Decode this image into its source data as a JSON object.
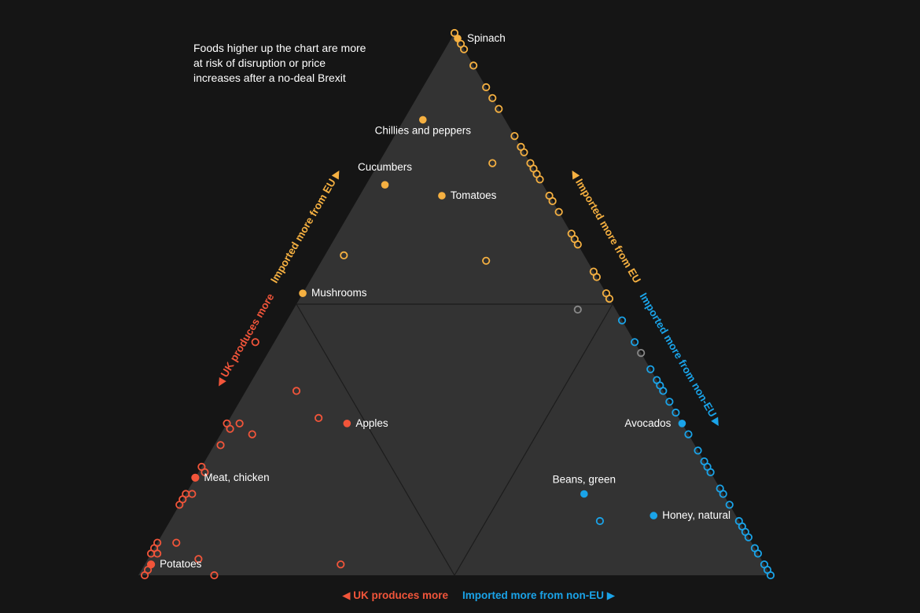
{
  "intro_text": "Foods higher up the chart are more at risk of disruption or price increases after a no-deal Brexit",
  "colors": {
    "background": "#151515",
    "triangle_fill": "#333333",
    "inner_lines": "#1c1c1c",
    "uk": "#f2553a",
    "eu": "#f5b041",
    "noneu": "#1aa3e8",
    "neutral": "#888888",
    "label": "#ffffff"
  },
  "chart_data": {
    "type": "scatter",
    "subtype": "ternary",
    "title": "",
    "components": [
      "UK produced",
      "Imported from EU",
      "Imported from non-EU"
    ],
    "axis_labels": {
      "left_upper": "Imported more from EU",
      "left_lower": "UK produces more",
      "right_upper": "Imported more from EU",
      "right_lower": "Imported more from non-EU",
      "bottom_left": "UK produces more",
      "bottom_right": "Imported more from non-EU"
    },
    "grid": "inner triangle at midpoints",
    "labeled_points": [
      {
        "name": "Spinach",
        "uk": 0.0,
        "eu": 0.99,
        "noneu": 0.01,
        "group": "eu"
      },
      {
        "name": "Chillies and peppers",
        "uk": 0.13,
        "eu": 0.84,
        "noneu": 0.03,
        "group": "eu"
      },
      {
        "name": "Cucumbers",
        "uk": 0.25,
        "eu": 0.72,
        "noneu": 0.03,
        "group": "eu"
      },
      {
        "name": "Tomatoes",
        "uk": 0.17,
        "eu": 0.7,
        "noneu": 0.13,
        "group": "eu"
      },
      {
        "name": "Mushrooms",
        "uk": 0.48,
        "eu": 0.52,
        "noneu": 0.0,
        "group": "eu"
      },
      {
        "name": "Apples",
        "uk": 0.53,
        "eu": 0.28,
        "noneu": 0.19,
        "group": "uk"
      },
      {
        "name": "Meat, chicken",
        "uk": 0.82,
        "eu": 0.18,
        "noneu": 0.0,
        "group": "uk"
      },
      {
        "name": "Potatoes",
        "uk": 0.97,
        "eu": 0.02,
        "noneu": 0.01,
        "group": "uk"
      },
      {
        "name": "Avocados",
        "uk": 0.0,
        "eu": 0.28,
        "noneu": 0.72,
        "group": "noneu"
      },
      {
        "name": "Beans, green",
        "uk": 0.22,
        "eu": 0.15,
        "noneu": 0.63,
        "group": "noneu"
      },
      {
        "name": "Honey, natural",
        "uk": 0.13,
        "eu": 0.11,
        "noneu": 0.76,
        "group": "noneu"
      }
    ],
    "other_points": [
      {
        "uk": 0.0,
        "eu": 1.0,
        "noneu": 0.0,
        "group": "eu"
      },
      {
        "uk": 0.0,
        "eu": 0.98,
        "noneu": 0.02,
        "group": "eu"
      },
      {
        "uk": 0.0,
        "eu": 0.97,
        "noneu": 0.03,
        "group": "eu"
      },
      {
        "uk": 0.0,
        "eu": 0.94,
        "noneu": 0.06,
        "group": "eu"
      },
      {
        "uk": 0.0,
        "eu": 0.9,
        "noneu": 0.1,
        "group": "eu"
      },
      {
        "uk": 0.0,
        "eu": 0.88,
        "noneu": 0.12,
        "group": "eu"
      },
      {
        "uk": 0.0,
        "eu": 0.86,
        "noneu": 0.14,
        "group": "eu"
      },
      {
        "uk": 0.0,
        "eu": 0.81,
        "noneu": 0.19,
        "group": "eu"
      },
      {
        "uk": 0.0,
        "eu": 0.79,
        "noneu": 0.21,
        "group": "eu"
      },
      {
        "uk": 0.0,
        "eu": 0.78,
        "noneu": 0.22,
        "group": "eu"
      },
      {
        "uk": 0.0,
        "eu": 0.76,
        "noneu": 0.24,
        "group": "eu"
      },
      {
        "uk": 0.0,
        "eu": 0.75,
        "noneu": 0.25,
        "group": "eu"
      },
      {
        "uk": 0.0,
        "eu": 0.73,
        "noneu": 0.27,
        "group": "eu"
      },
      {
        "uk": 0.0,
        "eu": 0.74,
        "noneu": 0.26,
        "group": "eu"
      },
      {
        "uk": 0.0,
        "eu": 0.7,
        "noneu": 0.3,
        "group": "eu"
      },
      {
        "uk": 0.0,
        "eu": 0.69,
        "noneu": 0.31,
        "group": "eu"
      },
      {
        "uk": 0.0,
        "eu": 0.67,
        "noneu": 0.33,
        "group": "eu"
      },
      {
        "uk": 0.0,
        "eu": 0.62,
        "noneu": 0.38,
        "group": "eu"
      },
      {
        "uk": 0.0,
        "eu": 0.63,
        "noneu": 0.37,
        "group": "eu"
      },
      {
        "uk": 0.0,
        "eu": 0.61,
        "noneu": 0.39,
        "group": "eu"
      },
      {
        "uk": 0.0,
        "eu": 0.56,
        "noneu": 0.44,
        "group": "eu"
      },
      {
        "uk": 0.0,
        "eu": 0.55,
        "noneu": 0.45,
        "group": "eu"
      },
      {
        "uk": 0.0,
        "eu": 0.52,
        "noneu": 0.48,
        "group": "eu"
      },
      {
        "uk": 0.0,
        "eu": 0.51,
        "noneu": 0.49,
        "group": "eu"
      },
      {
        "uk": 0.06,
        "eu": 0.76,
        "noneu": 0.18,
        "group": "eu"
      },
      {
        "uk": 0.38,
        "eu": 0.59,
        "noneu": 0.03,
        "group": "eu"
      },
      {
        "uk": 0.16,
        "eu": 0.58,
        "noneu": 0.26,
        "group": "eu"
      },
      {
        "uk": 0.06,
        "eu": 0.49,
        "noneu": 0.45,
        "group": "neutral"
      },
      {
        "uk": 0.0,
        "eu": 0.41,
        "noneu": 0.59,
        "group": "neutral"
      },
      {
        "uk": 0.0,
        "eu": 0.47,
        "noneu": 0.53,
        "group": "noneu"
      },
      {
        "uk": 0.0,
        "eu": 0.43,
        "noneu": 0.57,
        "group": "noneu"
      },
      {
        "uk": 0.0,
        "eu": 0.38,
        "noneu": 0.62,
        "group": "noneu"
      },
      {
        "uk": 0.0,
        "eu": 0.36,
        "noneu": 0.64,
        "group": "noneu"
      },
      {
        "uk": 0.0,
        "eu": 0.35,
        "noneu": 0.65,
        "group": "noneu"
      },
      {
        "uk": 0.0,
        "eu": 0.34,
        "noneu": 0.66,
        "group": "noneu"
      },
      {
        "uk": 0.0,
        "eu": 0.32,
        "noneu": 0.68,
        "group": "noneu"
      },
      {
        "uk": 0.0,
        "eu": 0.3,
        "noneu": 0.7,
        "group": "noneu"
      },
      {
        "uk": 0.0,
        "eu": 0.26,
        "noneu": 0.74,
        "group": "noneu"
      },
      {
        "uk": 0.0,
        "eu": 0.23,
        "noneu": 0.77,
        "group": "noneu"
      },
      {
        "uk": 0.0,
        "eu": 0.21,
        "noneu": 0.79,
        "group": "noneu"
      },
      {
        "uk": 0.0,
        "eu": 0.2,
        "noneu": 0.8,
        "group": "noneu"
      },
      {
        "uk": 0.0,
        "eu": 0.19,
        "noneu": 0.81,
        "group": "noneu"
      },
      {
        "uk": 0.0,
        "eu": 0.16,
        "noneu": 0.84,
        "group": "noneu"
      },
      {
        "uk": 0.0,
        "eu": 0.15,
        "noneu": 0.85,
        "group": "noneu"
      },
      {
        "uk": 0.0,
        "eu": 0.13,
        "noneu": 0.87,
        "group": "noneu"
      },
      {
        "uk": 0.0,
        "eu": 0.1,
        "noneu": 0.9,
        "group": "noneu"
      },
      {
        "uk": 0.0,
        "eu": 0.09,
        "noneu": 0.91,
        "group": "noneu"
      },
      {
        "uk": 0.0,
        "eu": 0.08,
        "noneu": 0.92,
        "group": "noneu"
      },
      {
        "uk": 0.0,
        "eu": 0.07,
        "noneu": 0.93,
        "group": "noneu"
      },
      {
        "uk": 0.0,
        "eu": 0.05,
        "noneu": 0.95,
        "group": "noneu"
      },
      {
        "uk": 0.0,
        "eu": 0.04,
        "noneu": 0.96,
        "group": "noneu"
      },
      {
        "uk": 0.0,
        "eu": 0.02,
        "noneu": 0.98,
        "group": "noneu"
      },
      {
        "uk": 0.0,
        "eu": 0.01,
        "noneu": 0.99,
        "group": "noneu"
      },
      {
        "uk": 0.0,
        "eu": 0.0,
        "noneu": 1.0,
        "group": "noneu"
      },
      {
        "uk": 0.22,
        "eu": 0.1,
        "noneu": 0.68,
        "group": "noneu"
      },
      {
        "uk": 0.6,
        "eu": 0.43,
        "noneu": -0.03,
        "group": "uk"
      },
      {
        "uk": 0.58,
        "eu": 0.34,
        "noneu": 0.08,
        "group": "uk"
      },
      {
        "uk": 0.57,
        "eu": 0.29,
        "noneu": 0.14,
        "group": "uk"
      },
      {
        "uk": 0.72,
        "eu": 0.28,
        "noneu": 0.0,
        "group": "uk"
      },
      {
        "uk": 0.7,
        "eu": 0.28,
        "noneu": 0.02,
        "group": "uk"
      },
      {
        "uk": 0.72,
        "eu": 0.27,
        "noneu": 0.01,
        "group": "uk"
      },
      {
        "uk": 0.69,
        "eu": 0.26,
        "noneu": 0.05,
        "group": "uk"
      },
      {
        "uk": 0.75,
        "eu": 0.24,
        "noneu": 0.01,
        "group": "uk"
      },
      {
        "uk": 0.8,
        "eu": 0.2,
        "noneu": 0.0,
        "group": "uk"
      },
      {
        "uk": 0.8,
        "eu": 0.19,
        "noneu": 0.01,
        "group": "uk"
      },
      {
        "uk": 0.82,
        "eu": 0.18,
        "noneu": 0.0,
        "group": "uk"
      },
      {
        "uk": 0.84,
        "eu": 0.15,
        "noneu": 0.01,
        "group": "uk"
      },
      {
        "uk": 0.86,
        "eu": 0.14,
        "noneu": 0.0,
        "group": "uk"
      },
      {
        "uk": 0.85,
        "eu": 0.15,
        "noneu": 0.0,
        "group": "uk"
      },
      {
        "uk": 0.87,
        "eu": 0.13,
        "noneu": 0.0,
        "group": "uk"
      },
      {
        "uk": 0.94,
        "eu": 0.06,
        "noneu": 0.0,
        "group": "uk"
      },
      {
        "uk": 0.95,
        "eu": 0.05,
        "noneu": 0.0,
        "group": "uk"
      },
      {
        "uk": 0.91,
        "eu": 0.06,
        "noneu": 0.03,
        "group": "uk"
      },
      {
        "uk": 0.96,
        "eu": 0.04,
        "noneu": 0.0,
        "group": "uk"
      },
      {
        "uk": 0.95,
        "eu": 0.04,
        "noneu": 0.01,
        "group": "uk"
      },
      {
        "uk": 0.97,
        "eu": 0.02,
        "noneu": 0.01,
        "group": "uk"
      },
      {
        "uk": 0.98,
        "eu": 0.01,
        "noneu": 0.01,
        "group": "uk"
      },
      {
        "uk": 0.99,
        "eu": 0.0,
        "noneu": 0.01,
        "group": "uk"
      },
      {
        "uk": 0.89,
        "eu": 0.03,
        "noneu": 0.08,
        "group": "uk"
      },
      {
        "uk": 0.88,
        "eu": 0.0,
        "noneu": 0.12,
        "group": "uk"
      },
      {
        "uk": 0.67,
        "eu": 0.02,
        "noneu": 0.31,
        "group": "uk"
      }
    ]
  }
}
